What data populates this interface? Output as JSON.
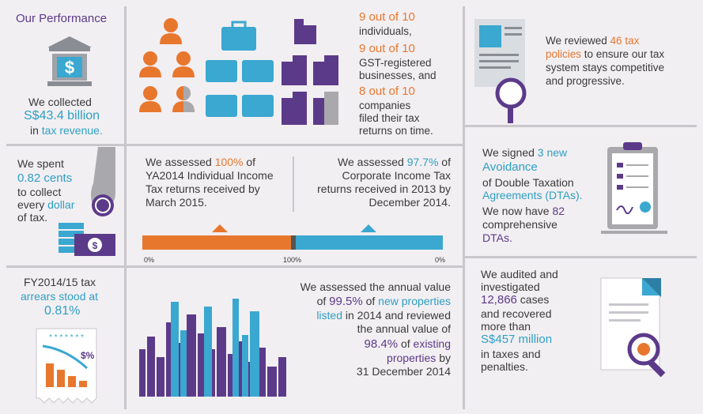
{
  "title": "Our Performance",
  "revenue": {
    "l1": "We collected",
    "amount": "S$43.4 billion",
    "l3a": "in ",
    "l3b": "tax revenue."
  },
  "filing": {
    "a1": "9 out of 10",
    "a2": "individuals,",
    "b1": "9 out of 10",
    "b2": "GST-registered",
    "b3": "businesses, and",
    "c1": "8 out of 10",
    "c2": "companies",
    "c3": "filed their tax",
    "c4": "returns on time."
  },
  "policies": {
    "l1a": "We reviewed ",
    "l1b": "46 tax",
    "l2a": "policies",
    "l2b": " to ensure our tax",
    "l3": "system stays competitive",
    "l4": "and progressive."
  },
  "cost": {
    "l1": "We spent",
    "l2": "0.82 cents",
    "l3": "to collect",
    "l4a": "every ",
    "l4b": "dollar",
    "l5": "of tax."
  },
  "assess_individual": {
    "l1a": "We assessed ",
    "l1b": "100%",
    "l1c": " of",
    "l2": "YA2014 Individual Income",
    "l3": "Tax returns received by",
    "l4": "March 2015."
  },
  "assess_corporate": {
    "l1a": "We assessed ",
    "l1b": "97.7%",
    "l1c": " of",
    "l2": "Corporate Income Tax",
    "l3": "returns received in 2013 by",
    "l4": "December 2014."
  },
  "progress": {
    "label_left": "0%",
    "label_mid": "100%",
    "label_right": "0%",
    "individual_fraction": 1.0,
    "corporate_fraction": 0.977,
    "color_left": "#e8772e",
    "color_right": "#3aa8d0"
  },
  "dta": {
    "l1a": "We signed ",
    "l1b": "3 new",
    "l2": "Avoidance",
    "l3": "of Double Taxation",
    "l4": "Agreements (DTAs).",
    "l5a": "We now have ",
    "l5b": "82",
    "l6": "comprehensive",
    "l7": "DTAs."
  },
  "arrears": {
    "l1": "FY2014/15 tax",
    "l2": "arrears stood at",
    "l3": "0.81%"
  },
  "property": {
    "l1": "We assessed the annual value",
    "l2a": "of ",
    "l2b": "99.5%",
    "l2c": " of ",
    "l2d": "new properties",
    "l3a": "listed",
    "l3b": " in 2014 and reviewed",
    "l4": "the annual value of",
    "l5a": "98.4%",
    "l5b": " of ",
    "l5c": "existing",
    "l6a": "properties",
    "l6b": " by",
    "l7": "31 December 2014"
  },
  "audit": {
    "l1": "We audited and",
    "l2": "investigated",
    "l3": "12,866",
    "l3b": " cases",
    "l4": "and recovered",
    "l5": "more than",
    "l6": "S$457 million",
    "l7": "in taxes and",
    "l8": "penalties."
  },
  "colors": {
    "orange": "#e8772e",
    "blue": "#3aa8d0",
    "purple": "#5c3a8a",
    "grey": "#a9a9ad"
  }
}
